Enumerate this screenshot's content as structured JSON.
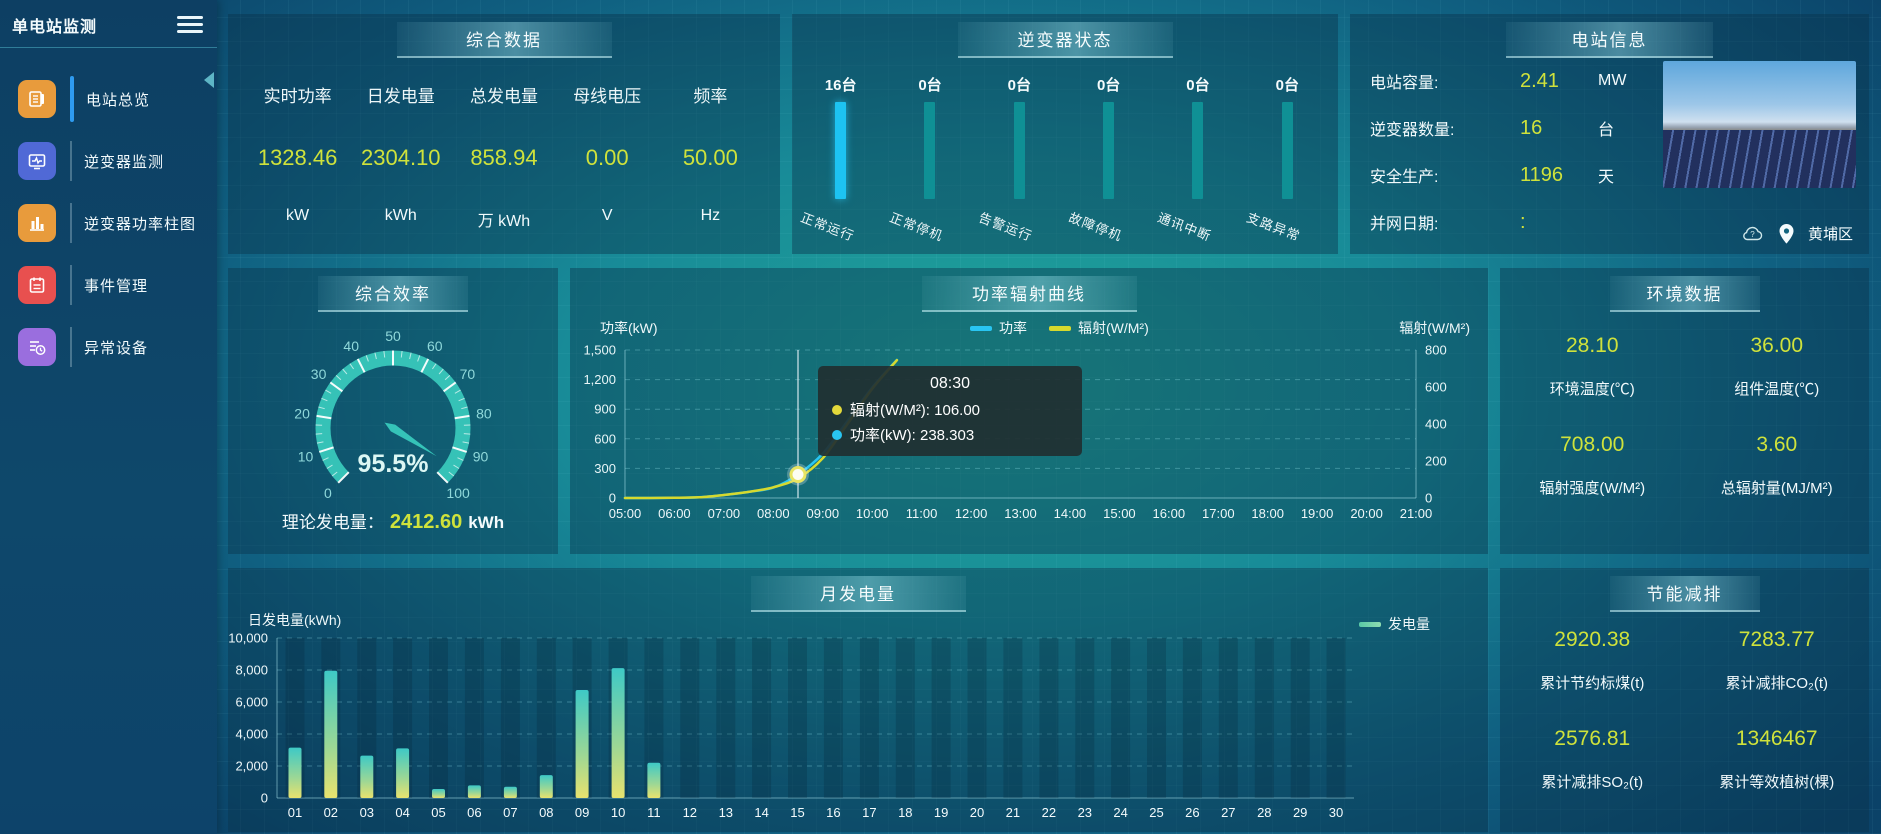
{
  "app_title": "单电站监测",
  "sidebar": {
    "items": [
      {
        "label": "电站总览",
        "icon": "overview-icon",
        "color": "#e89b3c",
        "active": true
      },
      {
        "label": "逆变器监测",
        "icon": "inverter-monitor-icon",
        "color": "#5069d6",
        "active": false
      },
      {
        "label": "逆变器功率柱图",
        "icon": "inverter-power-bar-icon",
        "color": "#e89b3c",
        "active": false
      },
      {
        "label": "事件管理",
        "icon": "event-manage-icon",
        "color": "#e8504f",
        "active": false
      },
      {
        "label": "异常设备",
        "icon": "abnormal-device-icon",
        "color": "#9a6ede",
        "active": false
      }
    ]
  },
  "summary": {
    "title": "综合数据",
    "metrics": [
      {
        "label": "实时功率",
        "value": "1328.46",
        "unit": "kW"
      },
      {
        "label": "日发电量",
        "value": "2304.10",
        "unit": "kWh"
      },
      {
        "label": "总发电量",
        "value": "858.94",
        "unit": "万 kWh"
      },
      {
        "label": "母线电压",
        "value": "0.00",
        "unit": "V"
      },
      {
        "label": "频率",
        "value": "50.00",
        "unit": "Hz"
      }
    ]
  },
  "inverter_status": {
    "title": "逆变器状态",
    "highlight_color": "#1dc3f2",
    "normal_color": "#0f9095",
    "bars": [
      {
        "count": "16台",
        "label": "正常运行",
        "highlight": true
      },
      {
        "count": "0台",
        "label": "正常停机",
        "highlight": false
      },
      {
        "count": "0台",
        "label": "告警运行",
        "highlight": false
      },
      {
        "count": "0台",
        "label": "故障停机",
        "highlight": false
      },
      {
        "count": "0台",
        "label": "通讯中断",
        "highlight": false
      },
      {
        "count": "0台",
        "label": "支路异常",
        "highlight": false
      }
    ]
  },
  "station_info": {
    "title": "电站信息",
    "rows": [
      {
        "label": "电站容量:",
        "value": "2.41",
        "unit": "MW"
      },
      {
        "label": "逆变器数量:",
        "value": "16",
        "unit": "台"
      },
      {
        "label": "安全生产:",
        "value": "1196",
        "unit": "天"
      },
      {
        "label": "并网日期:",
        "value": ":",
        "unit": ""
      }
    ],
    "location": "黄埔区"
  },
  "efficiency": {
    "title": "综合效率",
    "footer_label": "理论发电量：",
    "footer_value": "2412.60",
    "footer_unit": "kWh"
  },
  "power_curve": {
    "title": "功率辐射曲线"
  },
  "environment": {
    "title": "环境数据",
    "cells": [
      {
        "value": "28.10",
        "label": "环境温度(℃)"
      },
      {
        "value": "36.00",
        "label": "组件温度(℃)"
      },
      {
        "value": "708.00",
        "label": "辐射强度(W/M²)"
      },
      {
        "value": "3.60",
        "label": "总辐射量(MJ/M²)"
      }
    ]
  },
  "monthly": {
    "title": "月发电量"
  },
  "savings": {
    "title": "节能减排",
    "cells": [
      {
        "value": "2920.38",
        "label": "累计节约标煤(t)"
      },
      {
        "value": "7283.77",
        "label": "累计减排CO₂(t)"
      },
      {
        "value": "2576.81",
        "label": "累计减排SO₂(t)"
      },
      {
        "value": "1346467",
        "label": "累计等效植树(棵)"
      }
    ]
  },
  "chart_data": [
    {
      "id": "efficiency_gauge",
      "type": "gauge",
      "title": "综合效率",
      "min": 0,
      "max": 100,
      "value": 95.5,
      "display": "95.5%",
      "major_ticks": [
        0,
        10,
        20,
        30,
        40,
        50,
        60,
        70,
        80,
        90,
        100
      ],
      "arc_color": "#36c2b7"
    },
    {
      "id": "power_radiation",
      "type": "line",
      "title": "功率辐射曲线",
      "x_ticks": [
        "05:00",
        "06:00",
        "07:00",
        "08:00",
        "09:00",
        "10:00",
        "11:00",
        "12:00",
        "13:00",
        "14:00",
        "15:00",
        "16:00",
        "17:00",
        "18:00",
        "19:00",
        "20:00",
        "21:00"
      ],
      "x_range": [
        5,
        21
      ],
      "left_axis": {
        "label": "功率(kW)",
        "min": 0,
        "max": 1500,
        "tick_labels": [
          "0",
          "300",
          "600",
          "900",
          "1,200",
          "1,500"
        ]
      },
      "right_axis": {
        "label": "辐射(W/M²)",
        "min": 0,
        "max": 800,
        "tick_labels": [
          "0",
          "200",
          "400",
          "600",
          "800"
        ]
      },
      "series": [
        {
          "name": "功率",
          "axis": "left",
          "color": "#29c5f2",
          "x": [
            5,
            5.5,
            6,
            6.5,
            7,
            7.5,
            8,
            8.5,
            9,
            9.5,
            10,
            10.5
          ],
          "values": [
            0,
            0,
            2,
            8,
            30,
            62,
            105,
            238.3,
            450,
            780,
            1120,
            1400
          ]
        },
        {
          "name": "辐射(W/M²)",
          "axis": "right",
          "color": "#d6d92e",
          "x": [
            5,
            5.5,
            6,
            6.5,
            7,
            7.5,
            8,
            8.5,
            9,
            9.5,
            10,
            10.5
          ],
          "values": [
            0,
            0,
            1,
            4,
            16,
            33,
            58,
            106,
            215,
            400,
            590,
            745
          ]
        }
      ],
      "tooltip": {
        "time": "08:30",
        "x": 8.5,
        "items": [
          {
            "name": "辐射(W/M²)",
            "value": "106.00",
            "color": "#e3d93b"
          },
          {
            "name": "功率(kW)",
            "value": "238.303",
            "color": "#29c5f2"
          }
        ]
      }
    },
    {
      "id": "monthly_generation",
      "type": "bar",
      "title": "月发电量",
      "ylabel": "日发电量(kWh)",
      "legend": "发电量",
      "ylim": [
        0,
        10000
      ],
      "y_tick_labels": [
        "0",
        "2,000",
        "4,000",
        "6,000",
        "8,000",
        "10,000"
      ],
      "categories": [
        "01",
        "02",
        "03",
        "04",
        "05",
        "06",
        "07",
        "08",
        "09",
        "10",
        "11",
        "12",
        "13",
        "14",
        "15",
        "16",
        "17",
        "18",
        "19",
        "20",
        "21",
        "22",
        "23",
        "24",
        "25",
        "26",
        "27",
        "28",
        "29",
        "30"
      ],
      "values": [
        3150,
        7950,
        2650,
        3100,
        560,
        790,
        700,
        1430,
        6750,
        8120,
        2200,
        0,
        0,
        0,
        0,
        0,
        0,
        0,
        0,
        0,
        0,
        0,
        0,
        0,
        0,
        0,
        0,
        0,
        0,
        0
      ],
      "bar_gradient": [
        "#3ec9c6",
        "#e8e26e"
      ],
      "legend_colors": [
        "#58c9a6",
        "#8fdcb0"
      ]
    }
  ]
}
